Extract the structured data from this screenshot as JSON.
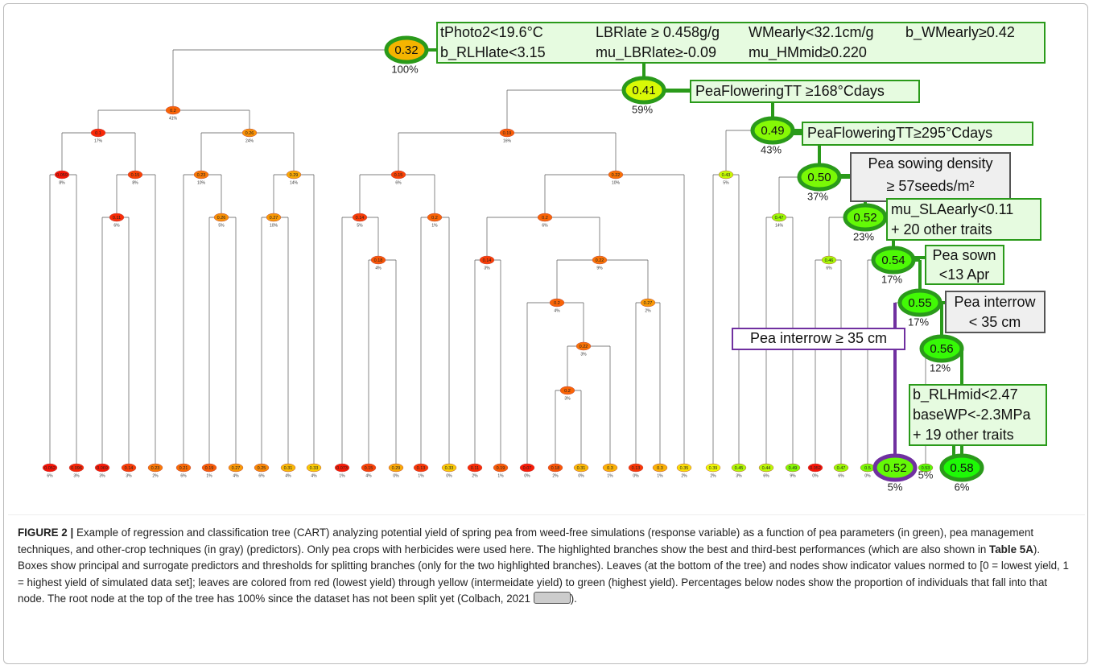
{
  "nodes": [
    {
      "value": "0.32",
      "pct": "100%"
    },
    {
      "value": "0.2",
      "pct": "41%"
    },
    {
      "value": "0.41",
      "pct": "59%"
    },
    {
      "value": "0.1",
      "pct": "17%"
    },
    {
      "value": "0.26",
      "pct": "24%"
    },
    {
      "value": "0.059",
      "pct": "8%"
    },
    {
      "value": "0.15",
      "pct": "8%"
    },
    {
      "value": "0.11",
      "pct": "6%"
    },
    {
      "value": "0.23",
      "pct": "10%"
    },
    {
      "value": "0.29",
      "pct": "14%"
    },
    {
      "value": "0.26",
      "pct": "5%"
    },
    {
      "value": "0.27",
      "pct": "10%"
    },
    {
      "value": "0.19",
      "pct": "16%"
    },
    {
      "value": "0.49",
      "pct": "43%"
    },
    {
      "value": "0.15",
      "pct": "6%"
    },
    {
      "value": "0.22",
      "pct": "10%"
    },
    {
      "value": "0.14",
      "pct": "5%"
    },
    {
      "value": "0.2",
      "pct": "1%"
    },
    {
      "value": "0.18",
      "pct": "4%"
    },
    {
      "value": "0.2",
      "pct": "6%"
    },
    {
      "value": "0.14",
      "pct": "3%"
    },
    {
      "value": "0.22",
      "pct": "9%"
    },
    {
      "value": "0.2",
      "pct": "4%"
    },
    {
      "value": "0.27",
      "pct": "2%"
    },
    {
      "value": "0.22",
      "pct": "3%"
    },
    {
      "value": "0.2",
      "pct": "3%"
    },
    {
      "value": "0.43",
      "pct": "5%"
    },
    {
      "value": "0.50",
      "pct": "37%"
    },
    {
      "value": "0.47",
      "pct": "14%"
    },
    {
      "value": "0.52",
      "pct": "23%"
    },
    {
      "value": "0.46",
      "pct": "6%"
    },
    {
      "value": "0.54",
      "pct": "17%"
    },
    {
      "value": "0.55",
      "pct": "17%"
    },
    {
      "value": "0.56",
      "pct": "12%"
    },
    {
      "value": "0.052",
      "pct": "6%"
    },
    {
      "value": "0.096",
      "pct": "3%"
    },
    {
      "value": "0.069",
      "pct": "3%"
    },
    {
      "value": "0.14",
      "pct": "3%"
    },
    {
      "value": "0.23",
      "pct": "2%"
    },
    {
      "value": "0.21",
      "pct": "6%"
    },
    {
      "value": "0.19",
      "pct": "1%"
    },
    {
      "value": "0.27",
      "pct": "4%"
    },
    {
      "value": "0.25",
      "pct": "6%"
    },
    {
      "value": "0.31",
      "pct": "4%"
    },
    {
      "value": "0.33",
      "pct": "4%"
    },
    {
      "value": "0.073",
      "pct": "1%"
    },
    {
      "value": "0.15",
      "pct": "4%"
    },
    {
      "value": "0.29",
      "pct": "0%"
    },
    {
      "value": "0.13",
      "pct": "1%"
    },
    {
      "value": "0.33",
      "pct": "0%"
    },
    {
      "value": "0.11",
      "pct": "2%"
    },
    {
      "value": "0.19",
      "pct": "1%"
    },
    {
      "value": "0.07",
      "pct": "0%"
    },
    {
      "value": "0.18",
      "pct": "2%"
    },
    {
      "value": "0.31",
      "pct": "0%"
    },
    {
      "value": "0.3",
      "pct": "1%"
    },
    {
      "value": "0.13",
      "pct": "0%"
    },
    {
      "value": "0.3",
      "pct": "1%"
    },
    {
      "value": "0.35",
      "pct": "2%"
    },
    {
      "value": "0.39",
      "pct": "2%"
    },
    {
      "value": "0.45",
      "pct": "3%"
    },
    {
      "value": "0.44",
      "pct": "6%"
    },
    {
      "value": "0.49",
      "pct": "9%"
    },
    {
      "value": "0.052",
      "pct": "0%"
    },
    {
      "value": "0.47",
      "pct": "6%"
    },
    {
      "value": "0.5",
      "pct": "0%"
    },
    {
      "value": "0.52",
      "pct": "5%"
    },
    {
      "value": "0.53",
      "pct": "5%"
    },
    {
      "value": "0.58",
      "pct": "6%"
    }
  ],
  "boxes": [
    {
      "lines": [
        "tPhoto2<19.6°C",
        "LBRlate ≥ 0.458g/g",
        "WMearly<32.1cm/g",
        "b_WMearly≥0.42",
        "b_RLHlate<3.15",
        "mu_LBRlate≥-0.09",
        "mu_HMmid≥0.220"
      ]
    },
    {
      "lines": [
        "PeaFloweringTT ≥168°Cdays"
      ]
    },
    {
      "lines": [
        "PeaFloweringTT≥295°Cdays"
      ]
    },
    {
      "lines": [
        "Pea sowing density",
        "≥ 57seeds/m²"
      ]
    },
    {
      "lines": [
        "mu_SLAearly<0.11",
        "+ 20 other traits"
      ]
    },
    {
      "lines": [
        "Pea sown",
        "<13 Apr"
      ]
    },
    {
      "lines": [
        "Pea interrow",
        "< 35 cm"
      ]
    },
    {
      "lines": [
        "Pea interrow ≥ 35 cm"
      ]
    },
    {
      "lines": [
        "b_RLHmid<2.47",
        "baseWP<-2.3MPa",
        "+ 19 other traits"
      ]
    }
  ],
  "caption": {
    "label": "FIGURE 2 |",
    "text_before": " Example of regression and classification tree (CART) analyzing potential yield of spring pea from weed-free simulations (response variable) as a function of pea parameters (in green), pea management techniques, and other-crop techniques (in gray) (predictors). Only pea crops with herbicides were used here. The highlighted branches show the best and third-best performances (which are also shown in ",
    "table_ref": "Table 5A",
    "text_after": "). Boxes show principal and surrogate predictors and thresholds for splitting branches (only for the two highlighted branches). Leaves (at the bottom of the tree) and nodes show indicator values normed to [0 = lowest yield, 1 = highest yield of simulated data set]; leaves are colored from red (lowest yield) through yellow (intermeidate yield) to green (highest yield). Percentages below nodes show the proportion of individuals that fall into that node. The root node at the top of the tree has 100% since the dataset has not been split yet (Colbach, 2021 ",
    "closing": ")."
  }
}
